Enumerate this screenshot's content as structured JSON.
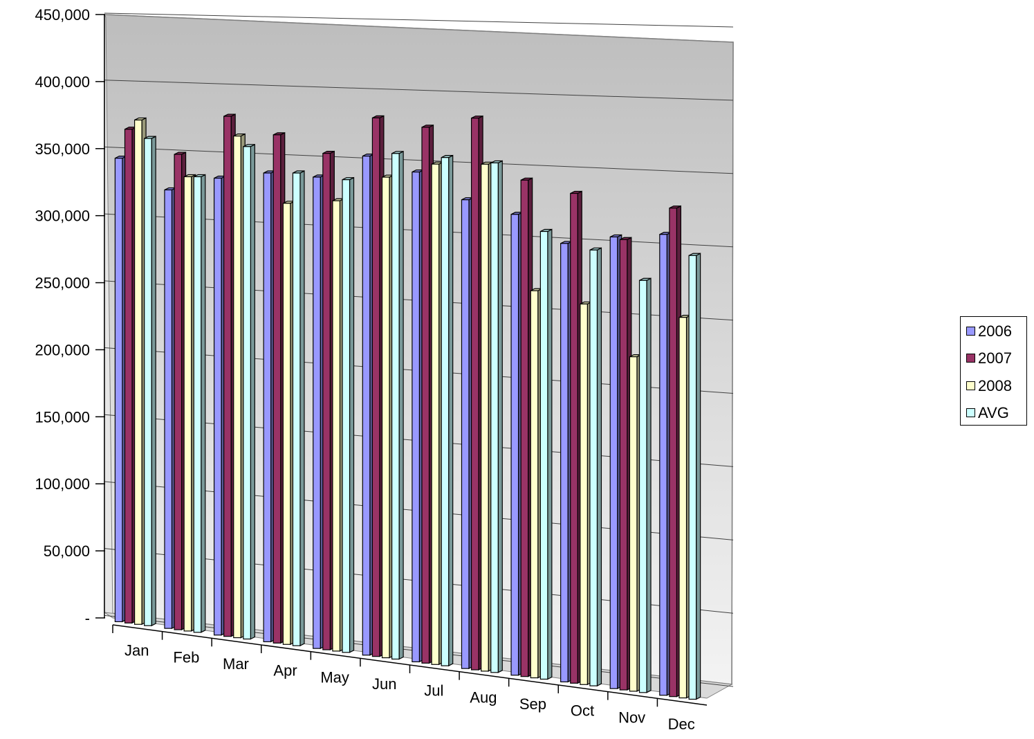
{
  "chart_data": {
    "type": "bar",
    "categories": [
      "Jan",
      "Feb",
      "Mar",
      "Apr",
      "May",
      "Jun",
      "Jul",
      "Aug",
      "Sep",
      "Oct",
      "Nov",
      "Dec"
    ],
    "series": [
      {
        "name": "2006",
        "color": "#9999ff",
        "values": [
          352000,
          333000,
          347000,
          356000,
          358000,
          379000,
          372000,
          356000,
          350000,
          333000,
          343000,
          350000
        ]
      },
      {
        "name": "2007",
        "color": "#993366",
        "values": [
          375000,
          361000,
          395000,
          386000,
          377000,
          409000,
          407000,
          419000,
          377000,
          372000,
          342000,
          371000
        ]
      },
      {
        "name": "2008",
        "color": "#ffffcc",
        "values": [
          383000,
          345000,
          381000,
          335000,
          342000,
          365000,
          380000,
          385000,
          294000,
          289000,
          254000,
          289000
        ]
      },
      {
        "name": "AVG",
        "color": "#ccffff",
        "values": [
          370000,
          346000,
          374000,
          359000,
          359000,
          384000,
          386000,
          387000,
          340000,
          331000,
          313000,
          337000
        ]
      }
    ],
    "ylim": [
      0,
      450000
    ],
    "y_ticks": [
      "-",
      "50,000",
      "100,000",
      "150,000",
      "200,000",
      "250,000",
      "300,000",
      "350,000",
      "400,000",
      "450,000"
    ],
    "grid": true,
    "legend_position": "right",
    "title": "",
    "xlabel": "",
    "ylabel": ""
  }
}
